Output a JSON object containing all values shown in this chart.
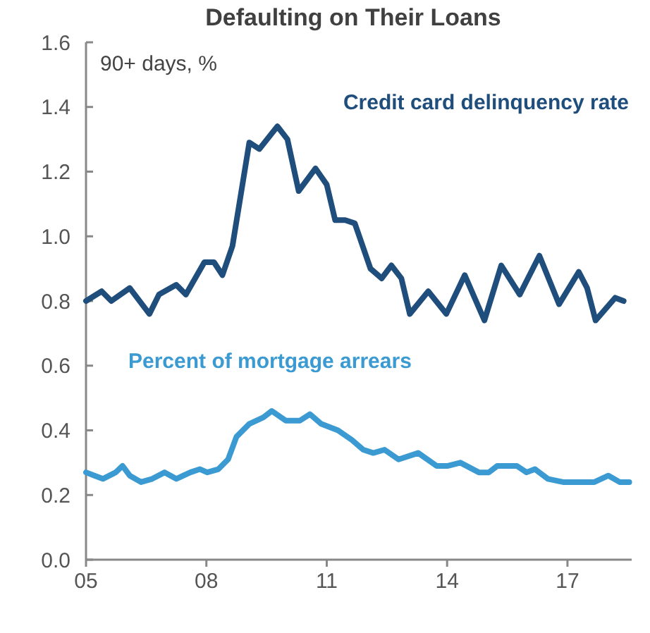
{
  "chart_data": {
    "type": "line",
    "title": "Defaulting on Their Loans",
    "annotations": [
      "90+ days, %"
    ],
    "xlim": [
      2005,
      2018.6
    ],
    "xticks": [
      {
        "value": 2005,
        "label": "05"
      },
      {
        "value": 2008,
        "label": "08"
      },
      {
        "value": 2011,
        "label": "11"
      },
      {
        "value": 2014,
        "label": "14"
      },
      {
        "value": 2017,
        "label": "17"
      }
    ],
    "ylim": [
      0,
      1.6
    ],
    "yticks": [
      {
        "value": 0,
        "label": "0.0"
      },
      {
        "value": 0.2,
        "label": "0.2"
      },
      {
        "value": 0.4,
        "label": "0.4"
      },
      {
        "value": 0.6,
        "label": "0.6"
      },
      {
        "value": 0.8,
        "label": "0.8"
      },
      {
        "value": 1,
        "label": "1.0"
      },
      {
        "value": 1.2,
        "label": "1.2"
      },
      {
        "value": 1.4,
        "label": "1.4"
      },
      {
        "value": 1.6,
        "label": "1.6"
      }
    ],
    "grid": false,
    "line_style": "solid",
    "marker": "none",
    "series": [
      {
        "name": "Credit card delinquency rate",
        "color": "#1f4e7c",
        "x": [
          2005.0,
          2005.39,
          2005.63,
          2006.09,
          2006.58,
          2006.82,
          2007.25,
          2007.49,
          2007.95,
          2008.19,
          2008.4,
          2008.65,
          2009.07,
          2009.32,
          2009.77,
          2010.02,
          2010.3,
          2010.72,
          2011.0,
          2011.21,
          2011.46,
          2011.7,
          2012.09,
          2012.37,
          2012.61,
          2012.86,
          2013.07,
          2013.53,
          2013.98,
          2014.44,
          2014.93,
          2015.35,
          2015.81,
          2016.3,
          2016.79,
          2017.28,
          2017.49,
          2017.7,
          2018.19,
          2018.4
        ],
        "values": [
          0.8,
          0.83,
          0.8,
          0.84,
          0.76,
          0.82,
          0.85,
          0.82,
          0.92,
          0.92,
          0.88,
          0.97,
          1.29,
          1.27,
          1.34,
          1.3,
          1.14,
          1.21,
          1.16,
          1.05,
          1.05,
          1.04,
          0.9,
          0.87,
          0.91,
          0.87,
          0.76,
          0.83,
          0.76,
          0.88,
          0.74,
          0.91,
          0.82,
          0.94,
          0.79,
          0.89,
          0.84,
          0.74,
          0.81,
          0.8
        ]
      },
      {
        "name": "Percent of mortgage arrears",
        "color": "#3b9ad2",
        "x": [
          2005.0,
          2005.21,
          2005.42,
          2005.74,
          2005.91,
          2006.09,
          2006.37,
          2006.65,
          2006.96,
          2007.25,
          2007.6,
          2007.84,
          2008.02,
          2008.3,
          2008.54,
          2008.75,
          2009.07,
          2009.42,
          2009.63,
          2009.98,
          2010.33,
          2010.58,
          2010.86,
          2011.28,
          2011.63,
          2011.91,
          2012.16,
          2012.44,
          2012.79,
          2013.28,
          2013.74,
          2014.02,
          2014.33,
          2014.79,
          2015.04,
          2015.25,
          2015.74,
          2015.98,
          2016.19,
          2016.51,
          2016.89,
          2017.32,
          2017.42,
          2017.67,
          2018.02,
          2018.3,
          2018.54
        ],
        "values": [
          0.27,
          0.26,
          0.25,
          0.27,
          0.29,
          0.26,
          0.24,
          0.25,
          0.27,
          0.25,
          0.27,
          0.28,
          0.27,
          0.28,
          0.31,
          0.38,
          0.42,
          0.44,
          0.46,
          0.43,
          0.43,
          0.45,
          0.42,
          0.4,
          0.37,
          0.34,
          0.33,
          0.34,
          0.31,
          0.33,
          0.29,
          0.29,
          0.3,
          0.27,
          0.27,
          0.29,
          0.29,
          0.27,
          0.28,
          0.25,
          0.24,
          0.24,
          0.24,
          0.24,
          0.26,
          0.24,
          0.24
        ]
      }
    ]
  }
}
